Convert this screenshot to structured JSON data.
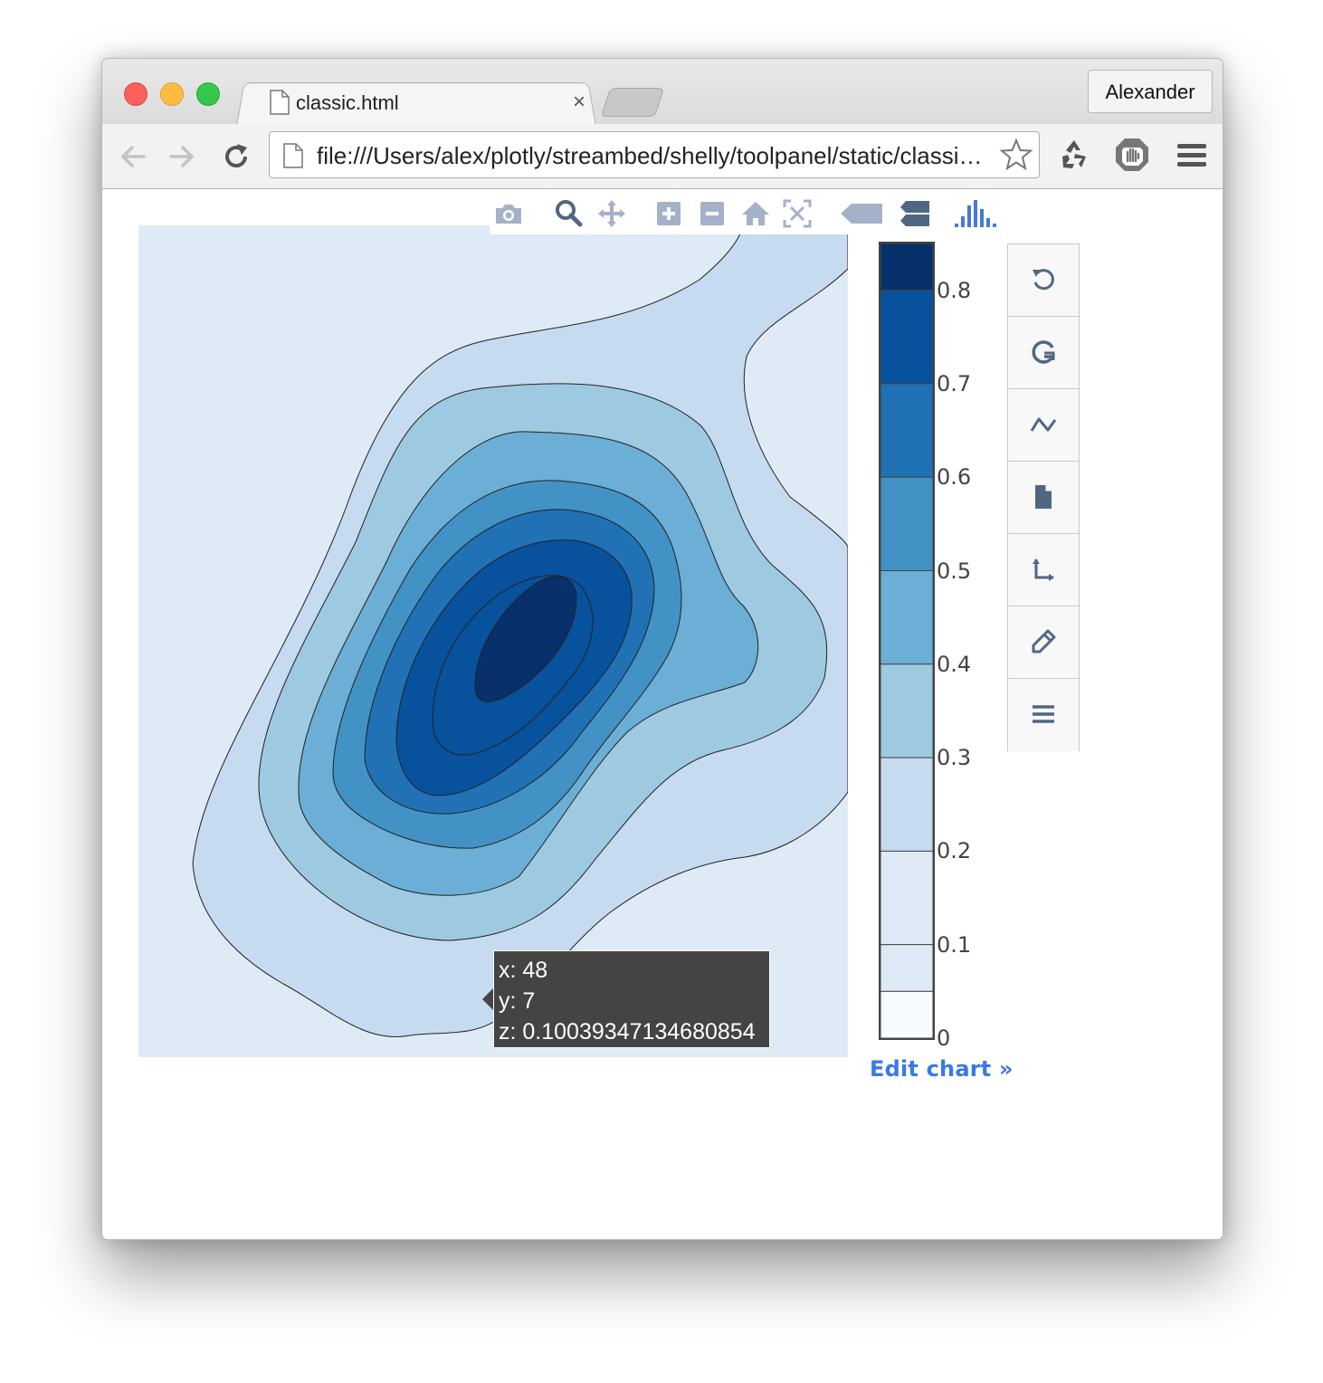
{
  "browser": {
    "tab_title": "classic.html",
    "tab_close": "×",
    "profile_name": "Alexander",
    "url": "file:///Users/alex/plotly/streambed/shelly/toolpanel/static/classic.html"
  },
  "modebar": {
    "buttons": [
      "camera-icon",
      "zoom-icon",
      "pan-icon",
      "zoom-in-icon",
      "zoom-out-icon",
      "home-icon",
      "autoscale-icon",
      "hover-closest-icon",
      "hover-compare-icon",
      "plotly-logo-icon"
    ]
  },
  "hover": {
    "x_line": "x: 48",
    "y_line": "y: 7",
    "z_line": "z: 0.1003934713468085​4"
  },
  "colorbar": {
    "ticks": [
      "0.8",
      "0.7",
      "0.6",
      "0.5",
      "0.4",
      "0.3",
      "0.2",
      "0.1",
      "0"
    ],
    "colors": [
      "#08306b",
      "#08519c",
      "#2171b5",
      "#4292c6",
      "#6baed6",
      "#9ecae1",
      "#c6dbef",
      "#deebf7",
      "#f7fbff"
    ]
  },
  "edit_link": "Edit chart »",
  "side_panel": {
    "buttons": [
      "undo-icon",
      "redo-icon",
      "trace-icon",
      "file-icon",
      "axes-icon",
      "style-icon",
      "menu-icon"
    ]
  },
  "chart_data": {
    "type": "contour",
    "colorscale": "Blues",
    "zrange": [
      0,
      0.85
    ],
    "contour_levels": [
      0.1,
      0.2,
      0.3,
      0.4,
      0.5,
      0.6,
      0.7,
      0.8
    ],
    "hover_point": {
      "x": 48,
      "y": 7,
      "z": 0.10039347134680854
    }
  }
}
